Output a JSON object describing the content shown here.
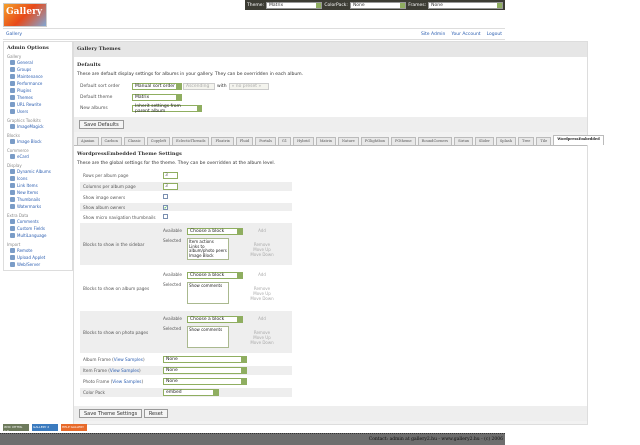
{
  "topbar": {
    "theme_label": "Theme:",
    "theme_value": "Matrix",
    "colorpack_label": "ColorPack:",
    "colorpack_value": "None",
    "frames_label": "Frames:",
    "frames_value": "None"
  },
  "logo": "Gallery",
  "nav": {
    "breadcrumb": "Gallery",
    "links": [
      "Site Admin",
      "Your Account",
      "Logout"
    ]
  },
  "sidebar": {
    "title": "Admin Options",
    "groups": [
      {
        "label": "Gallery",
        "items": [
          "General",
          "Groups",
          "Maintenance",
          "Performance",
          "Plugins",
          "Themes",
          "URL Rewrite",
          "Users"
        ]
      },
      {
        "label": "Graphics Toolkits",
        "items": [
          "ImageMagick"
        ]
      },
      {
        "label": "Blocks",
        "items": [
          "Image Block"
        ]
      },
      {
        "label": "Commerce",
        "items": [
          "eCard"
        ]
      },
      {
        "label": "Display",
        "items": [
          "Dynamic Albums",
          "Icons",
          "Link Items",
          "New Items",
          "Thumbnails",
          "Watermarks"
        ]
      },
      {
        "label": "Extra Data",
        "items": [
          "Comments",
          "Custom Fields",
          "MultiLanguage"
        ]
      },
      {
        "label": "Import",
        "items": [
          "Remote",
          "Upload Applet",
          "Web/Server"
        ]
      }
    ],
    "current": "Themes"
  },
  "main": {
    "title": "Gallery Themes",
    "defaults": {
      "heading": "Defaults",
      "description": "These are default display settings for albums in your gallery. They can be overridden in each album.",
      "sort_label": "Default sort order",
      "sort_value": "Manual sort order",
      "direction_value": "Ascending",
      "with_label": "with",
      "preset_value": "« no preset »",
      "theme_label": "Default theme",
      "theme_value": "Matrix",
      "new_albums_label": "New albums",
      "new_albums_value": "Inherit settings from parent album",
      "save_label": "Save Defaults"
    },
    "tabs": [
      "Ajaxian",
      "Carbon",
      "Classic",
      "Copyleft",
      "EclecticThreads",
      "Floatrix",
      "Fluid",
      "Portals",
      "G1",
      "Hybrid",
      "Matrix",
      "Nature",
      "PGlightbox",
      "PGtheme",
      "RoundCorners",
      "Siriux",
      "Slider",
      "Splash",
      "Tree",
      "Tile",
      "WordpressEmbedded"
    ],
    "active_tab": "WordpressEmbedded",
    "settings": {
      "heading": "WordpressEmbedded Theme Settings",
      "description": "These are the global settings for the theme. They can be overridden at the album level.",
      "rows_label": "Rows per album page",
      "rows_value": "3",
      "cols_label": "Columns per album page",
      "cols_value": "3",
      "image_owners_label": "Show image owners",
      "image_owners": false,
      "album_owners_label": "Show album owners",
      "album_owners": true,
      "micro_nav_label": "Show micro navigation thumbnails",
      "micro_nav": false,
      "available_label": "Available",
      "selected_label": "Selected",
      "choose": "Choose a block",
      "add": "Add",
      "remove": "Remove",
      "move_up": "Move Up",
      "move_down": "Move Down",
      "sidebar_label": "Blocks to show in the sidebar",
      "sidebar_blocks": [
        "Item actions",
        "Links to album/photo peers",
        "Image Block"
      ],
      "album_label": "Blocks to show on album pages",
      "album_blocks": [
        "Show comments"
      ],
      "photo_label": "Blocks to show on photo pages",
      "photo_blocks": [
        "Show comments"
      ],
      "view_samples": "View Samples",
      "album_frame_label": "Album Frame",
      "album_frame": "None",
      "item_frame_label": "Item Frame",
      "item_frame": "None",
      "photo_frame_label": "Photo Frame",
      "photo_frame": "None",
      "colorpack_label": "Color Pack",
      "colorpack": "embed",
      "save_label": "Save Theme Settings",
      "reset_label": "Reset"
    }
  },
  "badges": [
    "W3C XHTML 1.0",
    "GALLERY 2",
    "HELP GALLERY"
  ],
  "footer": "Contact: admin at gallery2.hu - www.gallery2.hu - (c) 2006"
}
